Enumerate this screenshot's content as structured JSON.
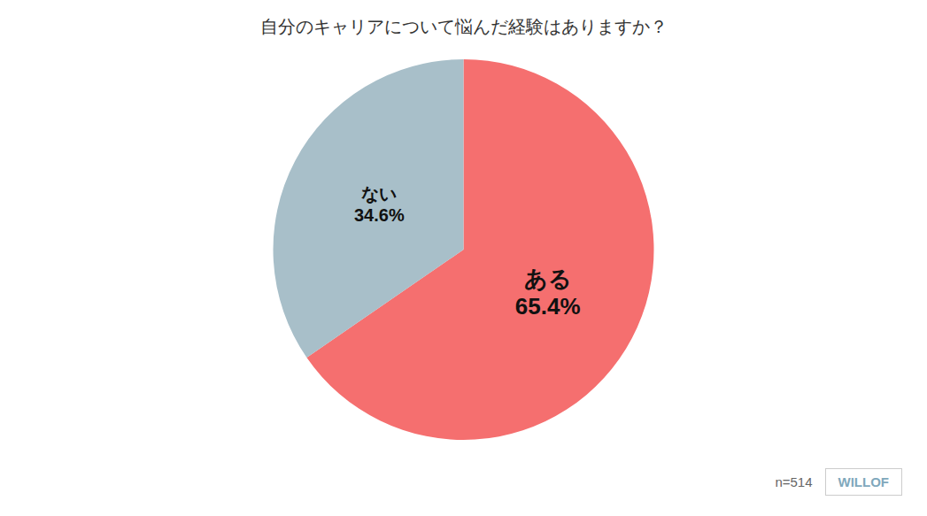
{
  "chart_data": {
    "type": "pie",
    "title": "自分のキャリアについて悩んだ経験はありますか？",
    "categories": [
      "ある",
      "ない"
    ],
    "values": [
      65.4,
      34.6
    ],
    "value_labels": [
      "65.4%",
      "34.6%"
    ],
    "colors": [
      "#F56F6F",
      "#A8BFC9"
    ],
    "data_labels": true,
    "annotations": [
      "n=514",
      "WILLOF"
    ]
  }
}
